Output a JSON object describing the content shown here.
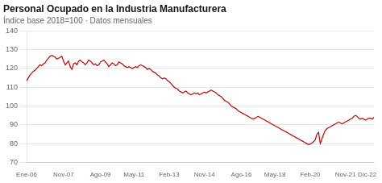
{
  "chart_data": {
    "type": "line",
    "title": "Personal Ocupado en la Industria Manufacturera",
    "subtitle": "Índice base 2018=100 · Datos mensuales",
    "color": "#cc0000",
    "ylim": [
      70,
      140
    ],
    "yticks": [
      70,
      80,
      90,
      100,
      110,
      120,
      130,
      140
    ],
    "grid": true,
    "categories": [
      "Ene-06",
      null,
      null,
      null,
      null,
      null,
      null,
      null,
      null,
      null,
      null,
      null,
      null,
      null,
      null,
      null,
      null,
      null,
      null,
      null,
      null,
      null,
      "Nov-07",
      null,
      null,
      null,
      null,
      null,
      null,
      null,
      null,
      null,
      null,
      null,
      null,
      null,
      null,
      null,
      null,
      null,
      null,
      null,
      null,
      null,
      "Ago-09",
      null,
      null,
      null,
      null,
      null,
      null,
      null,
      null,
      null,
      null,
      null,
      null,
      null,
      null,
      null,
      null,
      null,
      null,
      null,
      "May-11",
      null,
      null,
      null,
      null,
      null,
      null,
      null,
      null,
      null,
      null,
      null,
      null,
      null,
      null,
      null,
      null,
      null,
      null,
      null,
      null,
      "Feb-13",
      null,
      null,
      null,
      null,
      null,
      null,
      null,
      null,
      null,
      null,
      null,
      null,
      null,
      null,
      null,
      null,
      null,
      null,
      null,
      null,
      "Nov-14",
      null,
      null,
      null,
      null,
      null,
      null,
      null,
      null,
      null,
      null,
      null,
      null,
      null,
      null,
      null,
      null,
      null,
      null,
      null,
      null,
      null,
      "Ago-16",
      null,
      null,
      null,
      null,
      null,
      null,
      null,
      null,
      null,
      null,
      null,
      null,
      null,
      null,
      null,
      null,
      null,
      null,
      null,
      "May-18",
      null,
      null,
      null,
      null,
      null,
      null,
      null,
      null,
      null,
      null,
      null,
      null,
      null,
      null,
      null,
      null,
      null,
      null,
      null,
      null,
      "Feb-20",
      null,
      null,
      null,
      null,
      null,
      null,
      null,
      null,
      null,
      null,
      null,
      null,
      null,
      null,
      null,
      null,
      null,
      null,
      null,
      null,
      "Nov-21",
      null,
      null,
      null,
      null,
      null,
      null,
      null,
      null,
      null,
      null,
      null,
      null,
      "Dic-22",
      null,
      null,
      null,
      null
    ],
    "values": [
      113.5,
      115.0,
      116.5,
      117.5,
      118.5,
      119.0,
      120.0,
      121.0,
      122.0,
      121.5,
      122.5,
      123.0,
      124.5,
      125.5,
      126.5,
      127.0,
      126.5,
      126.0,
      125.0,
      125.5,
      126.0,
      126.5,
      124.0,
      122.0,
      123.0,
      124.0,
      121.0,
      119.5,
      122.5,
      123.0,
      122.0,
      124.0,
      124.5,
      123.5,
      123.0,
      122.0,
      123.0,
      124.5,
      124.0,
      123.0,
      122.0,
      122.5,
      121.5,
      122.0,
      123.5,
      124.0,
      124.5,
      123.5,
      122.5,
      121.0,
      122.0,
      123.0,
      122.5,
      121.5,
      122.0,
      123.5,
      123.0,
      122.5,
      121.5,
      121.0,
      120.5,
      121.0,
      120.5,
      120.0,
      120.5,
      121.0,
      120.5,
      121.5,
      122.0,
      121.5,
      121.0,
      120.5,
      119.5,
      120.0,
      119.5,
      118.5,
      118.0,
      117.5,
      116.5,
      116.0,
      115.0,
      114.5,
      115.0,
      114.5,
      113.5,
      113.0,
      112.0,
      111.0,
      110.0,
      109.5,
      109.0,
      108.0,
      107.5,
      107.0,
      107.5,
      108.0,
      107.0,
      106.5,
      106.0,
      106.5,
      107.0,
      106.5,
      107.0,
      106.0,
      106.5,
      107.0,
      107.5,
      107.0,
      107.5,
      108.0,
      108.5,
      108.0,
      107.5,
      107.0,
      106.0,
      105.5,
      105.0,
      104.0,
      103.0,
      102.5,
      102.0,
      101.0,
      100.0,
      99.5,
      99.0,
      98.5,
      97.5,
      97.0,
      96.5,
      96.0,
      95.5,
      95.0,
      94.5,
      94.0,
      93.5,
      93.0,
      93.5,
      94.0,
      94.5,
      94.0,
      93.5,
      93.0,
      92.5,
      92.0,
      91.5,
      91.0,
      90.5,
      90.0,
      89.5,
      89.0,
      88.5,
      88.0,
      87.5,
      87.0,
      86.5,
      86.0,
      85.5,
      85.0,
      84.5,
      84.0,
      83.5,
      83.0,
      82.5,
      82.0,
      81.5,
      81.0,
      80.5,
      80.0,
      79.5,
      79.8,
      80.3,
      81.0,
      82.0,
      85.0,
      86.0,
      80.0,
      82.5,
      85.0,
      87.0,
      88.0,
      88.5,
      89.0,
      89.5,
      90.0,
      90.5,
      91.0,
      91.5,
      91.0,
      90.5,
      91.0,
      91.5,
      92.0,
      92.5,
      93.0,
      93.5,
      94.5,
      95.0,
      94.5,
      93.5,
      93.0,
      93.5,
      93.0,
      92.5,
      93.0,
      93.5,
      93.5,
      93.0,
      94.0
    ]
  }
}
